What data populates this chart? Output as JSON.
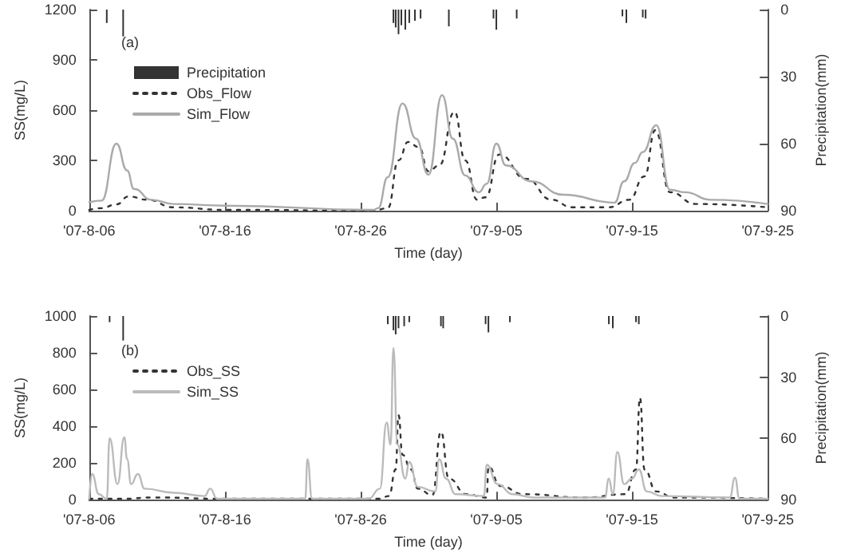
{
  "chart_data": [
    {
      "type": "line",
      "xlabel": "Time (day)",
      "ylabel": "SS(mg/L)",
      "y2label": "Precipitation(mm)",
      "annotations": [
        "(a)"
      ],
      "legend": "top left",
      "marker": "none",
      "xlim": [
        "2007-08-06",
        "2007-09-25"
      ],
      "xticks": [
        {
          "value": "2007-08-06",
          "label": "'07-8-06"
        },
        {
          "value": "2007-08-16",
          "label": "'07-8-16"
        },
        {
          "value": "2007-08-26",
          "label": "'07-8-26"
        },
        {
          "value": "2007-09-05",
          "label": "'07-9-05"
        },
        {
          "value": "2007-09-15",
          "label": "'07-9-15"
        },
        {
          "value": "2007-09-25",
          "label": "'07-9-25"
        }
      ],
      "ylim": [
        0,
        1200
      ],
      "yticks": [
        0,
        300,
        600,
        900,
        1200
      ],
      "y2lim": [
        90,
        0
      ],
      "y2ticks": [
        0,
        30,
        60,
        90
      ],
      "series": [
        {
          "name": "Precipitation",
          "type": "bar",
          "axis": "y2",
          "color": "#333333",
          "x": [
            "2007-08-07T07:00",
            "2007-08-08T12:00",
            "2007-08-28T10:00",
            "2007-08-28T14:00",
            "2007-08-28T19:00",
            "2007-08-29T00:00",
            "2007-08-29T07:00",
            "2007-08-29T14:00",
            "2007-08-30T00:00",
            "2007-08-30T10:00",
            "2007-09-01T12:00",
            "2007-09-04T19:00",
            "2007-09-05T00:00",
            "2007-09-06T12:00",
            "2007-09-14T07:00",
            "2007-09-14T14:00",
            "2007-09-15T19:00",
            "2007-09-16T00:00"
          ],
          "values": [
            6,
            12,
            6,
            8,
            11,
            7,
            9,
            6,
            5,
            4,
            7.5,
            4,
            9,
            4,
            3,
            6,
            3.5,
            4
          ]
        },
        {
          "name": "Obs_Flow",
          "line_style": "dotted",
          "color": "#333333",
          "x": [
            "2007-08-06T00:00",
            "2007-08-06T22:00",
            "2007-08-08T00:00",
            "2007-08-08T22:00",
            "2007-08-10T07:00",
            "2007-08-12T05:00",
            "2007-08-16T00:00",
            "2007-08-26T22:00",
            "2007-08-28T00:00",
            "2007-08-28T19:00",
            "2007-08-29T12:00",
            "2007-08-30T07:00",
            "2007-08-31T00:00",
            "2007-08-31T19:00",
            "2007-09-01T22:00",
            "2007-09-02T17:00",
            "2007-09-03T14:00",
            "2007-09-04T05:00",
            "2007-09-05T05:00",
            "2007-09-07T05:00",
            "2007-09-09T02:00",
            "2007-09-10T14:00",
            "2007-09-13T07:00",
            "2007-09-14T19:00",
            "2007-09-15T22:00",
            "2007-09-16T17:00",
            "2007-09-17T19:00",
            "2007-09-19T17:00",
            "2007-09-25T00:00"
          ],
          "values": [
            5,
            15,
            38,
            85,
            65,
            20,
            5,
            0,
            15,
            300,
            410,
            380,
            235,
            270,
            590,
            300,
            65,
            80,
            335,
            190,
            65,
            20,
            20,
            65,
            205,
            480,
            110,
            40,
            20
          ]
        },
        {
          "name": "Sim_Flow",
          "line_style": "solid",
          "color": "#aaaaaa",
          "x": [
            "2007-08-06T00:00",
            "2007-08-06T22:00",
            "2007-08-08T00:00",
            "2007-08-08T19:00",
            "2007-08-09T07:00",
            "2007-08-10T14:00",
            "2007-08-12T05:00",
            "2007-08-16T00:00",
            "2007-08-26T22:00",
            "2007-08-27T07:00",
            "2007-08-28T00:00",
            "2007-08-29T02:00",
            "2007-08-30T02:00",
            "2007-08-31T00:00",
            "2007-09-01T00:00",
            "2007-09-01T19:00",
            "2007-09-02T17:00",
            "2007-09-03T17:00",
            "2007-09-04T07:00",
            "2007-09-05T00:00",
            "2007-09-05T17:00",
            "2007-09-07T14:00",
            "2007-09-09T22:00",
            "2007-09-13T17:00",
            "2007-09-14T10:00",
            "2007-09-15T05:00",
            "2007-09-15T19:00",
            "2007-09-16T19:00",
            "2007-09-17T19:00",
            "2007-09-18T22:00",
            "2007-09-20T19:00",
            "2007-09-25T00:00"
          ],
          "values": [
            50,
            60,
            400,
            240,
            130,
            65,
            40,
            30,
            5,
            15,
            200,
            640,
            430,
            215,
            690,
            430,
            210,
            110,
            160,
            400,
            270,
            175,
            95,
            48,
            175,
            285,
            350,
            510,
            125,
            110,
            65,
            40
          ]
        }
      ]
    },
    {
      "type": "line",
      "xlabel": "Time (day)",
      "ylabel": "SS(mg/L)",
      "y2label": "Precipitation(mm)",
      "annotations": [
        "(b)"
      ],
      "legend": "top left",
      "marker": "none",
      "xlim": [
        "2007-08-06",
        "2007-09-25"
      ],
      "xticks": [
        {
          "value": "2007-08-06",
          "label": "'07-8-06"
        },
        {
          "value": "2007-08-16",
          "label": "'07-8-16"
        },
        {
          "value": "2007-08-26",
          "label": "'07-8-26"
        },
        {
          "value": "2007-09-05",
          "label": "'07-9-05"
        },
        {
          "value": "2007-09-15",
          "label": "'07-9-15"
        },
        {
          "value": "2007-09-25",
          "label": "'07-9-25"
        }
      ],
      "ylim": [
        0,
        1000
      ],
      "yticks": [
        0,
        200,
        400,
        600,
        800,
        1000
      ],
      "y2lim": [
        90,
        0
      ],
      "y2ticks": [
        0,
        30,
        60,
        90
      ],
      "series": [
        {
          "type": "bar",
          "axis": "y2",
          "color": "#333333",
          "x": [
            "2007-08-07T12:00",
            "2007-08-08T12:00",
            "2007-08-28T00:00",
            "2007-08-28T10:00",
            "2007-08-28T14:00",
            "2007-08-28T19:00",
            "2007-08-29T05:00",
            "2007-08-29T14:00",
            "2007-08-31T22:00",
            "2007-09-01T02:00",
            "2007-09-04T05:00",
            "2007-09-04T10:00",
            "2007-09-06T00:00",
            "2007-09-13T07:00",
            "2007-09-13T14:00",
            "2007-09-15T07:00",
            "2007-09-15T12:00"
          ],
          "values": [
            3,
            12,
            4,
            7,
            9,
            6,
            5,
            3,
            5,
            6,
            4,
            8,
            3,
            4,
            6,
            3,
            4
          ]
        },
        {
          "name": "Obs_SS",
          "line_style": "dotted",
          "color": "#333333",
          "x": [
            "2007-08-06T00:00",
            "2007-08-08T10:00",
            "2007-08-10T17:00",
            "2007-08-16T00:00",
            "2007-08-27T10:00",
            "2007-08-28T02:00",
            "2007-08-28T14:00",
            "2007-08-28T19:00",
            "2007-08-29T02:00",
            "2007-08-29T17:00",
            "2007-08-30T05:00",
            "2007-08-31T07:00",
            "2007-08-31T22:00",
            "2007-09-01T12:00",
            "2007-09-02T19:00",
            "2007-09-04T07:00",
            "2007-09-04T10:00",
            "2007-09-05T07:00",
            "2007-09-07T00:00",
            "2007-09-11T12:00",
            "2007-09-14T12:00",
            "2007-09-15T07:00",
            "2007-09-15T14:00",
            "2007-09-15T22:00",
            "2007-09-16T19:00",
            "2007-09-18T02:00",
            "2007-09-25T00:00"
          ],
          "values": [
            5,
            5,
            12,
            5,
            5,
            20,
            165,
            460,
            245,
            165,
            60,
            25,
            370,
            115,
            30,
            12,
            180,
            75,
            30,
            12,
            30,
            165,
            555,
            165,
            45,
            12,
            5
          ]
        },
        {
          "name": "Sim_SS",
          "line_style": "solid",
          "color": "#bbbbbb",
          "x": [
            "2007-08-06T00:00",
            "2007-08-06T05:00",
            "2007-08-06T17:00",
            "2007-08-07T07:00",
            "2007-08-07T12:00",
            "2007-08-08T02:00",
            "2007-08-08T14:00",
            "2007-08-08T19:00",
            "2007-08-09T02:00",
            "2007-08-09T14:00",
            "2007-08-10T02:00",
            "2007-08-12T05:00",
            "2007-08-14T12:00",
            "2007-08-14T22:00",
            "2007-08-15T10:00",
            "2007-08-21T22:00",
            "2007-08-22T02:00",
            "2007-08-22T10:00",
            "2007-08-26T14:00",
            "2007-08-27T10:00",
            "2007-08-27T22:00",
            "2007-08-28T05:00",
            "2007-08-28T10:00",
            "2007-08-28T17:00",
            "2007-08-29T07:00",
            "2007-08-29T14:00",
            "2007-08-30T05:00",
            "2007-08-31T12:00",
            "2007-08-31T19:00",
            "2007-09-01T07:00",
            "2007-09-02T00:00",
            "2007-09-04T02:00",
            "2007-09-04T07:00",
            "2007-09-05T02:00",
            "2007-09-06T05:00",
            "2007-09-07T17:00",
            "2007-09-13T00:00",
            "2007-09-13T07:00",
            "2007-09-13T14:00",
            "2007-09-13T22:00",
            "2007-09-14T10:00",
            "2007-09-15T00:00",
            "2007-09-15T12:00",
            "2007-09-16T02:00",
            "2007-09-17T05:00",
            "2007-09-22T05:00",
            "2007-09-22T14:00",
            "2007-09-22T22:00",
            "2007-09-25T00:00"
          ],
          "values": [
            5,
            140,
            30,
            5,
            335,
            85,
            340,
            220,
            85,
            140,
            60,
            38,
            20,
            60,
            5,
            5,
            220,
            5,
            5,
            60,
            420,
            300,
            825,
            300,
            115,
            205,
            70,
            45,
            220,
            115,
            30,
            20,
            190,
            85,
            30,
            12,
            12,
            115,
            30,
            260,
            85,
            115,
            165,
            45,
            20,
            12,
            120,
            5,
            5
          ]
        }
      ]
    }
  ]
}
